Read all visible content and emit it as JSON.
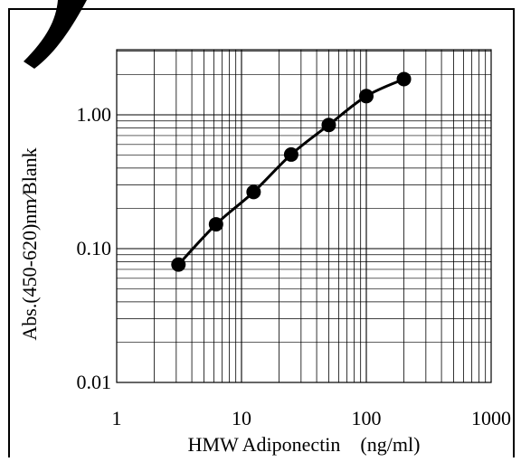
{
  "chart_data": {
    "type": "line",
    "xlabel": "HMW Adiponectin　(ng/ml)",
    "ylabel": "Abs.(450-620)nm∕Blank",
    "xscale": "log",
    "yscale": "log",
    "xlim": [
      1,
      1000
    ],
    "ylim": [
      0.01,
      3
    ],
    "xticks": [
      1,
      10,
      100,
      1000
    ],
    "xtick_labels": [
      "1",
      "10",
      "100",
      "1000"
    ],
    "yticks": [
      0.01,
      0.1,
      1
    ],
    "ytick_labels": [
      "0.01",
      "0.10",
      "1.00"
    ],
    "grid": true,
    "legend": "none",
    "series": [
      {
        "x": [
          3.125,
          6.25,
          12.5,
          25,
          50,
          100,
          200
        ],
        "y": [
          0.076,
          0.152,
          0.265,
          0.505,
          0.84,
          1.38,
          1.85
        ],
        "color": "#000000",
        "marker": "circle"
      }
    ]
  }
}
